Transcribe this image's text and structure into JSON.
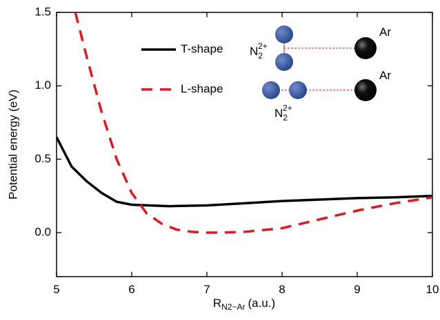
{
  "chart_data": {
    "type": "line",
    "xlabel": "R",
    "xlabel_sub": "N2−Ar",
    "xlabel_unit": "(a.u.)",
    "ylabel": "Potential energy (eV)",
    "xlim": [
      5,
      10
    ],
    "xticks": [
      5,
      6,
      7,
      8,
      9,
      10
    ],
    "ylim": [
      -0.3,
      1.5
    ],
    "yticks": [
      {
        "value": 0,
        "label": "0.0"
      },
      0.5,
      {
        "value": 1,
        "label": "1.0"
      },
      1.5
    ],
    "legend": "top-center",
    "series": [
      {
        "name": "T-shape",
        "color": "#000000",
        "dash": false,
        "x": [
          5,
          5.2,
          5.4,
          5.6,
          5.8,
          6,
          6.5,
          7,
          7.5,
          8,
          8.5,
          9,
          9.5,
          10
        ],
        "values": [
          0.65,
          0.45,
          0.35,
          0.27,
          0.21,
          0.19,
          0.18,
          0.185,
          0.2,
          0.215,
          0.225,
          0.235,
          0.24,
          0.25
        ]
      },
      {
        "name": "L-shape",
        "color": "#e8141b",
        "dash": true,
        "x": [
          5.25,
          5.4,
          5.6,
          5.8,
          6,
          6.2,
          6.4,
          6.6,
          6.8,
          7,
          7.2,
          7.5,
          8,
          8.5,
          9,
          9.5,
          10
        ],
        "values": [
          1.5,
          1.2,
          0.82,
          0.5,
          0.27,
          0.13,
          0.06,
          0.02,
          0.005,
          0,
          0,
          0.005,
          0.03,
          0.09,
          0.15,
          0.2,
          0.24
        ]
      }
    ],
    "annotations": [
      "Ar",
      "Ar"
    ],
    "ions": [
      {
        "base": "N",
        "sub": "2",
        "sup": "2+"
      },
      {
        "base": "N",
        "sub": "2",
        "sup": "2+"
      }
    ]
  }
}
